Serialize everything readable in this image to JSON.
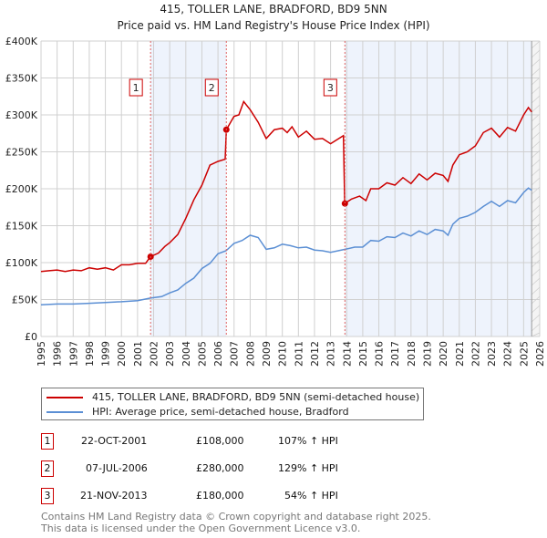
{
  "chart_data": {
    "type": "line",
    "title": "415, TOLLER LANE, BRADFORD, BD9 5NN",
    "subtitle": "Price paid vs. HM Land Registry's House Price Index (HPI)",
    "xlabel": "",
    "ylabel": "",
    "xlim": [
      1995,
      2026
    ],
    "ylim": [
      0,
      400000
    ],
    "x_ticks": [
      "1995",
      "1996",
      "1997",
      "1998",
      "1999",
      "2000",
      "2001",
      "2002",
      "2003",
      "2004",
      "2005",
      "2006",
      "2007",
      "2008",
      "2009",
      "2010",
      "2011",
      "2012",
      "2013",
      "2014",
      "2015",
      "2016",
      "2017",
      "2018",
      "2019",
      "2020",
      "2021",
      "2022",
      "2023",
      "2024",
      "2025",
      "2026"
    ],
    "y_ticks": [
      {
        "v": 0,
        "label": "£0"
      },
      {
        "v": 50000,
        "label": "£50K"
      },
      {
        "v": 100000,
        "label": "£100K"
      },
      {
        "v": 150000,
        "label": "£150K"
      },
      {
        "v": 200000,
        "label": "£200K"
      },
      {
        "v": 250000,
        "label": "£250K"
      },
      {
        "v": 300000,
        "label": "£300K"
      },
      {
        "v": 350000,
        "label": "£350K"
      },
      {
        "v": 400000,
        "label": "£400K"
      }
    ],
    "grid": true,
    "colors": {
      "property": "#cc0000",
      "hpi": "#5b8fd4",
      "shade": "#eef3fc"
    },
    "series": [
      {
        "name": "415, TOLLER LANE, BRADFORD, BD9 5NN (semi-detached house)",
        "key": "property",
        "points": [
          [
            1995,
            88
          ],
          [
            1995.5,
            89
          ],
          [
            1996,
            90
          ],
          [
            1996.5,
            88
          ],
          [
            1997,
            90
          ],
          [
            1997.5,
            89
          ],
          [
            1998,
            93
          ],
          [
            1998.5,
            91
          ],
          [
            1999,
            93
          ],
          [
            1999.5,
            90
          ],
          [
            2000,
            97
          ],
          [
            2000.5,
            97
          ],
          [
            2001,
            99
          ],
          [
            2001.5,
            99
          ],
          [
            2001.8,
            108
          ],
          [
            2002.3,
            113
          ],
          [
            2002.7,
            122
          ],
          [
            2003,
            127
          ],
          [
            2003.5,
            138
          ],
          [
            2004,
            160
          ],
          [
            2004.5,
            185
          ],
          [
            2005,
            205
          ],
          [
            2005.5,
            232
          ],
          [
            2006,
            237
          ],
          [
            2006.45,
            240
          ],
          [
            2006.52,
            280
          ],
          [
            2007,
            298
          ],
          [
            2007.3,
            300
          ],
          [
            2007.6,
            318
          ],
          [
            2008,
            307
          ],
          [
            2008.5,
            290
          ],
          [
            2009,
            268
          ],
          [
            2009.5,
            280
          ],
          [
            2010,
            282
          ],
          [
            2010.3,
            276
          ],
          [
            2010.6,
            284
          ],
          [
            2011,
            270
          ],
          [
            2011.5,
            278
          ],
          [
            2012,
            267
          ],
          [
            2012.5,
            268
          ],
          [
            2013,
            261
          ],
          [
            2013.8,
            272
          ],
          [
            2013.88,
            180
          ],
          [
            2014.3,
            186
          ],
          [
            2014.8,
            190
          ],
          [
            2015.2,
            184
          ],
          [
            2015.5,
            200
          ],
          [
            2016,
            200
          ],
          [
            2016.5,
            208
          ],
          [
            2017,
            205
          ],
          [
            2017.5,
            215
          ],
          [
            2018,
            207
          ],
          [
            2018.5,
            220
          ],
          [
            2019,
            212
          ],
          [
            2019.5,
            221
          ],
          [
            2020,
            218
          ],
          [
            2020.3,
            210
          ],
          [
            2020.6,
            232
          ],
          [
            2021,
            246
          ],
          [
            2021.5,
            250
          ],
          [
            2022,
            258
          ],
          [
            2022.5,
            276
          ],
          [
            2023,
            282
          ],
          [
            2023.5,
            270
          ],
          [
            2024,
            283
          ],
          [
            2024.5,
            278
          ],
          [
            2025,
            300
          ],
          [
            2025.3,
            310
          ],
          [
            2025.5,
            304
          ]
        ]
      },
      {
        "name": "HPI: Average price, semi-detached house, Bradford",
        "key": "hpi",
        "points": [
          [
            1995,
            43
          ],
          [
            1996,
            44
          ],
          [
            1997,
            44
          ],
          [
            1998,
            45
          ],
          [
            1999,
            46
          ],
          [
            2000,
            47
          ],
          [
            2001,
            48.5
          ],
          [
            2001.8,
            52
          ],
          [
            2002.5,
            54
          ],
          [
            2003,
            59
          ],
          [
            2003.5,
            63
          ],
          [
            2004,
            72
          ],
          [
            2004.5,
            79
          ],
          [
            2005,
            92
          ],
          [
            2005.5,
            99
          ],
          [
            2006,
            112
          ],
          [
            2006.5,
            116
          ],
          [
            2007,
            126
          ],
          [
            2007.5,
            130
          ],
          [
            2008,
            137
          ],
          [
            2008.5,
            134
          ],
          [
            2009,
            118
          ],
          [
            2009.5,
            120
          ],
          [
            2010,
            125
          ],
          [
            2010.5,
            123
          ],
          [
            2011,
            120
          ],
          [
            2011.5,
            121
          ],
          [
            2012,
            117
          ],
          [
            2012.5,
            116
          ],
          [
            2013,
            114
          ],
          [
            2013.9,
            118
          ],
          [
            2014.5,
            121
          ],
          [
            2015,
            121
          ],
          [
            2015.5,
            130
          ],
          [
            2016,
            129
          ],
          [
            2016.5,
            135
          ],
          [
            2017,
            134
          ],
          [
            2017.5,
            140
          ],
          [
            2018,
            136
          ],
          [
            2018.5,
            143
          ],
          [
            2019,
            138
          ],
          [
            2019.5,
            145
          ],
          [
            2020,
            143
          ],
          [
            2020.3,
            137
          ],
          [
            2020.6,
            152
          ],
          [
            2021,
            160
          ],
          [
            2021.5,
            163
          ],
          [
            2022,
            168
          ],
          [
            2022.5,
            176
          ],
          [
            2023,
            183
          ],
          [
            2023.5,
            176
          ],
          [
            2024,
            184
          ],
          [
            2024.5,
            181
          ],
          [
            2025,
            195
          ],
          [
            2025.3,
            201
          ],
          [
            2025.5,
            198
          ]
        ]
      }
    ],
    "sales": [
      {
        "n": "1",
        "x": 2001.81,
        "value": 108000,
        "date": "22-OCT-2001",
        "price": "£108,000",
        "hpi": "107% ↑ HPI"
      },
      {
        "n": "2",
        "x": 2006.52,
        "value": 280000,
        "date": "07-JUL-2006",
        "price": "£280,000",
        "hpi": "129% ↑ HPI"
      },
      {
        "n": "3",
        "x": 2013.89,
        "value": 180000,
        "date": "21-NOV-2013",
        "price": "£180,000",
        "hpi": "54% ↑ HPI"
      }
    ],
    "shaded_ranges": [
      [
        2001.81,
        2006.52
      ],
      [
        2013.89,
        2025.5
      ]
    ],
    "future_from": 2025.5,
    "legend_position": "bottom"
  },
  "footer": {
    "line1": "Contains HM Land Registry data © Crown copyright and database right 2025.",
    "line2": "This data is licensed under the Open Government Licence v3.0."
  }
}
